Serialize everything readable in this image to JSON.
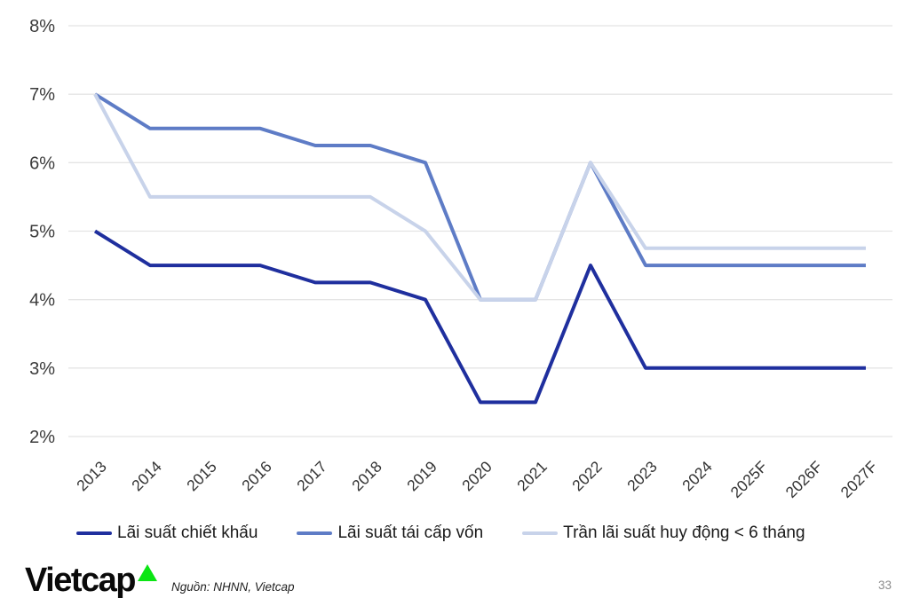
{
  "chart_data": {
    "type": "line",
    "title": "",
    "xlabel": "",
    "ylabel": "",
    "categories": [
      "2013",
      "2014",
      "2015",
      "2016",
      "2017",
      "2018",
      "2019",
      "2020",
      "2021",
      "2022",
      "2023",
      "2024",
      "2025F",
      "2026F",
      "2027F"
    ],
    "series": [
      {
        "name": "Lãi suất chiết khấu",
        "color": "#1F2F9E",
        "values": [
          5.0,
          4.5,
          4.5,
          4.5,
          4.25,
          4.25,
          4.0,
          2.5,
          2.5,
          4.5,
          3.0,
          3.0,
          3.0,
          3.0,
          3.0
        ]
      },
      {
        "name": "Lãi suất tái cấp vốn",
        "color": "#5E7CC6",
        "values": [
          7.0,
          6.5,
          6.5,
          6.5,
          6.25,
          6.25,
          6.0,
          4.0,
          4.0,
          6.0,
          4.5,
          4.5,
          4.5,
          4.5,
          4.5
        ]
      },
      {
        "name": "Trần lãi suất huy động < 6 tháng",
        "color": "#C8D3EA",
        "values": [
          7.0,
          5.5,
          5.5,
          5.5,
          5.5,
          5.5,
          5.0,
          4.0,
          4.0,
          6.0,
          4.75,
          4.75,
          4.75,
          4.75,
          4.75
        ]
      }
    ],
    "y_ticks": [
      "8%",
      "7%",
      "6%",
      "5%",
      "4%",
      "3%",
      "2%"
    ],
    "ylim": [
      2,
      8
    ],
    "grid": true,
    "legend_position": "bottom"
  },
  "legend": {
    "items": [
      {
        "label": "Lãi suất chiết khấu"
      },
      {
        "label": "Lãi suất tái cấp vốn"
      },
      {
        "label": "Trần lãi suất huy động < 6 tháng"
      }
    ]
  },
  "footer": {
    "logo_text": "Vietcap",
    "source": "Nguồn: NHNN, Vietcap",
    "page_number": "33"
  },
  "colors": {
    "series_1": "#1F2F9E",
    "series_2": "#5E7CC6",
    "series_3": "#C8D3EA",
    "gridline": "#E4E4E4",
    "axis_text": "#3B3B3B",
    "logo_green": "#0BE514"
  }
}
